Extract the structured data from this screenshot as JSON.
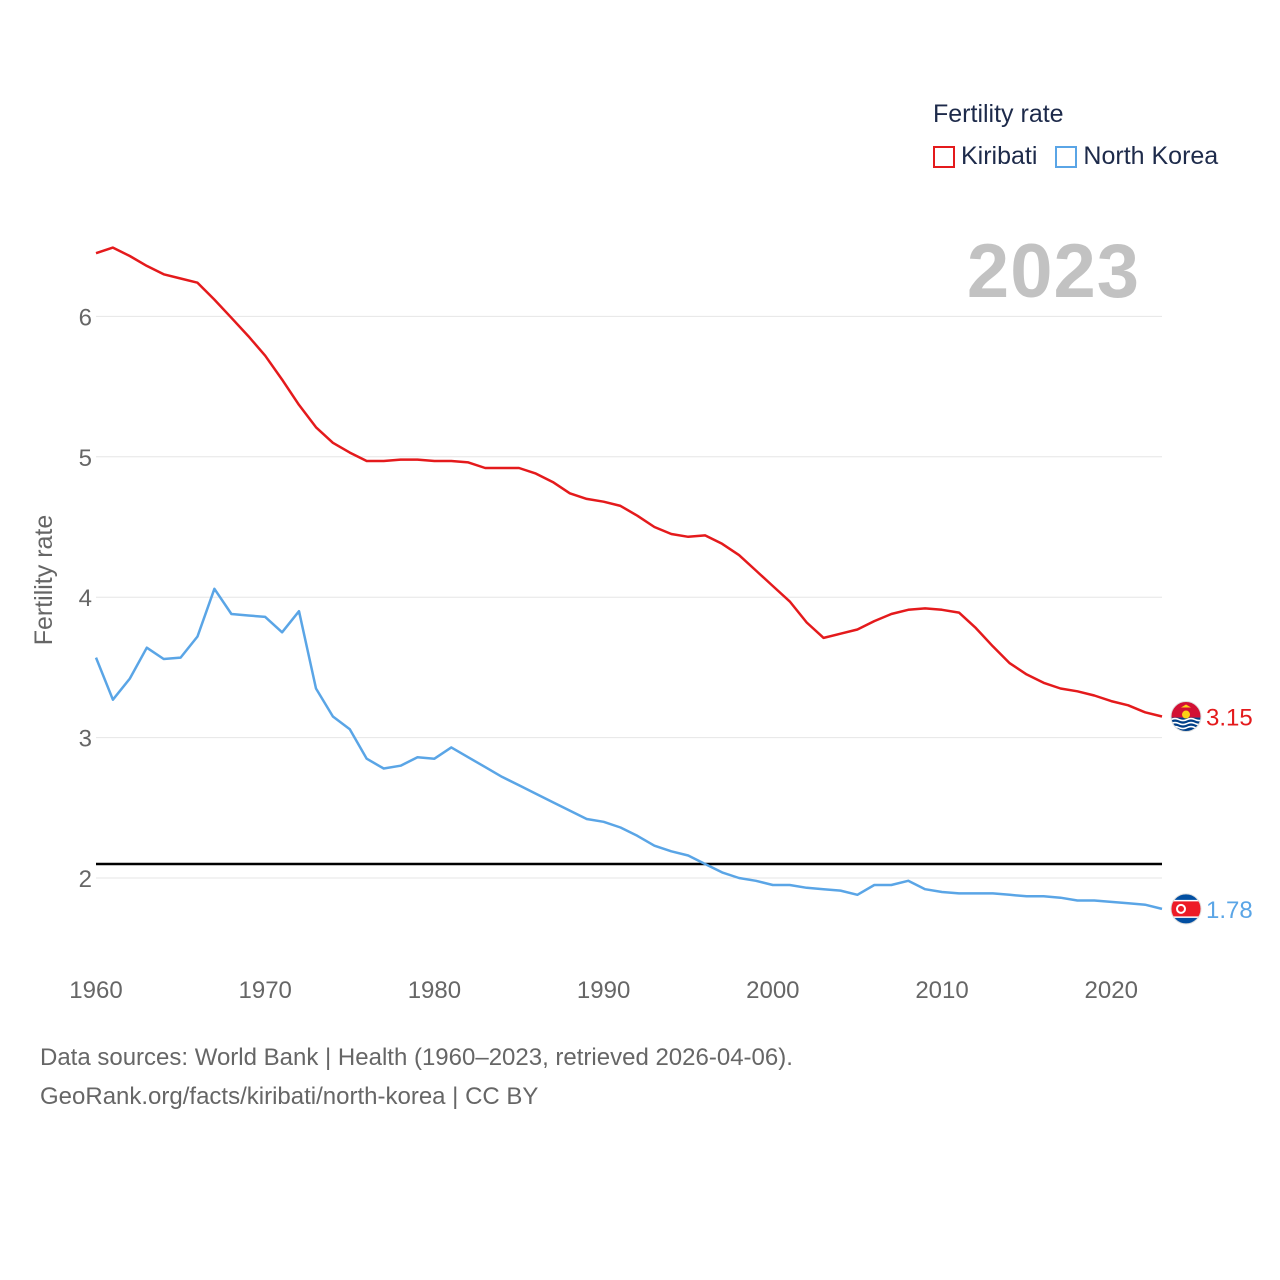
{
  "legend": {
    "title": "Fertility rate",
    "items": [
      {
        "label": "Kiribati",
        "color": "#e41a1c"
      },
      {
        "label": "North Korea",
        "color": "#5aa5e6"
      }
    ]
  },
  "year_badge": "2023",
  "footer": {
    "line1": "Data sources: World Bank | Health (1960–2023, retrieved 2026-04-06).",
    "line2": "GeoRank.org/facts/kiribati/north-korea | CC BY"
  },
  "chart_data": {
    "type": "line",
    "title": "Fertility rate",
    "xlabel": "",
    "ylabel": "Fertility rate",
    "xlim": [
      1960,
      2023
    ],
    "ylim": [
      1.4,
      6.9
    ],
    "yticks": [
      2,
      3,
      4,
      5,
      6
    ],
    "xticks": [
      1960,
      1970,
      1980,
      1990,
      2000,
      2010,
      2020
    ],
    "grid": true,
    "reference_line": {
      "y": 2.1,
      "color": "#000000"
    },
    "x": [
      1960,
      1961,
      1962,
      1963,
      1964,
      1965,
      1966,
      1967,
      1968,
      1969,
      1970,
      1971,
      1972,
      1973,
      1974,
      1975,
      1976,
      1977,
      1978,
      1979,
      1980,
      1981,
      1982,
      1983,
      1984,
      1985,
      1986,
      1987,
      1988,
      1989,
      1990,
      1991,
      1992,
      1993,
      1994,
      1995,
      1996,
      1997,
      1998,
      1999,
      2000,
      2001,
      2002,
      2003,
      2004,
      2005,
      2006,
      2007,
      2008,
      2009,
      2010,
      2011,
      2012,
      2013,
      2014,
      2015,
      2016,
      2017,
      2018,
      2019,
      2020,
      2021,
      2022,
      2023
    ],
    "series": [
      {
        "name": "Kiribati",
        "color": "#e41a1c",
        "end_label": "3.15",
        "values": [
          6.45,
          6.49,
          6.43,
          6.36,
          6.3,
          6.27,
          6.24,
          6.12,
          5.99,
          5.86,
          5.72,
          5.55,
          5.37,
          5.21,
          5.1,
          5.03,
          4.97,
          4.97,
          4.98,
          4.98,
          4.97,
          4.97,
          4.96,
          4.92,
          4.92,
          4.92,
          4.88,
          4.82,
          4.74,
          4.7,
          4.68,
          4.65,
          4.58,
          4.5,
          4.45,
          4.43,
          4.44,
          4.38,
          4.3,
          4.19,
          4.08,
          3.97,
          3.82,
          3.71,
          3.74,
          3.77,
          3.83,
          3.88,
          3.91,
          3.92,
          3.91,
          3.89,
          3.78,
          3.65,
          3.53,
          3.45,
          3.39,
          3.35,
          3.33,
          3.3,
          3.26,
          3.23,
          3.18,
          3.15
        ]
      },
      {
        "name": "North Korea",
        "color": "#5aa5e6",
        "end_label": "1.78",
        "values": [
          3.57,
          3.27,
          3.42,
          3.64,
          3.56,
          3.57,
          3.72,
          4.06,
          3.88,
          3.87,
          3.86,
          3.75,
          3.9,
          3.35,
          3.15,
          3.06,
          2.85,
          2.78,
          2.8,
          2.86,
          2.85,
          2.93,
          2.86,
          2.79,
          2.72,
          2.66,
          2.6,
          2.54,
          2.48,
          2.42,
          2.4,
          2.36,
          2.3,
          2.23,
          2.19,
          2.16,
          2.1,
          2.04,
          2.0,
          1.98,
          1.95,
          1.95,
          1.93,
          1.92,
          1.91,
          1.88,
          1.95,
          1.95,
          1.98,
          1.92,
          1.9,
          1.89,
          1.89,
          1.89,
          1.88,
          1.87,
          1.87,
          1.86,
          1.84,
          1.84,
          1.83,
          1.82,
          1.81,
          1.78
        ]
      }
    ]
  }
}
